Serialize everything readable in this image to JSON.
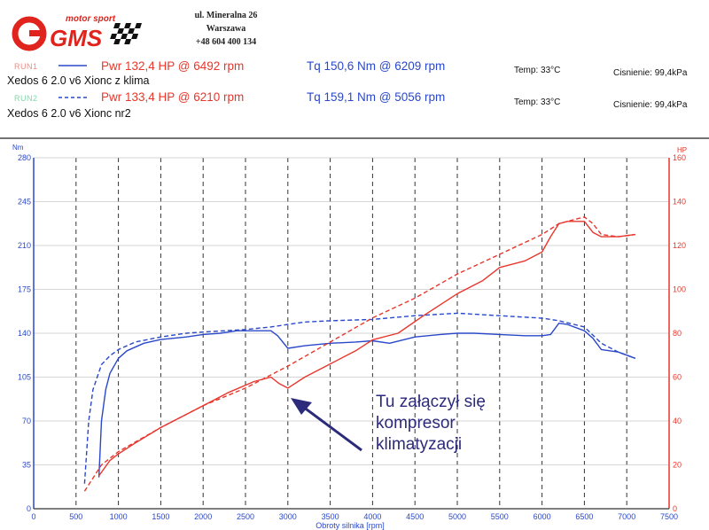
{
  "header": {
    "brand_tagline": "motor sport",
    "brand_letters": "GMS",
    "address_line1": "ul. Mineralna 26",
    "address_line2": "Warszawa",
    "phone": "+48 604 400 134"
  },
  "runs": [
    {
      "tag": "RUN1",
      "tag_color": "#f08a80",
      "line_style": "solid",
      "description": "Xedos 6 2.0  v6 Xionc z  klima",
      "power": "Pwr 132,4 HP @ 6492 rpm",
      "torque": "Tq 150,6 Nm @ 6209 rpm",
      "temp": "Temp: 33°C",
      "pressure": "Cisnienie: 99,4kPa"
    },
    {
      "tag": "RUN2",
      "tag_color": "#7fd9a8",
      "line_style": "dashed",
      "description": "Xedos 6 2.0  v6 Xionc nr2",
      "power": "Pwr 133,4 HP @ 6210 rpm",
      "torque": "Tq 159,1 Nm @ 5056 rpm",
      "temp": "Temp: 33°C",
      "pressure": "Cisnienie: 99,4kPa"
    }
  ],
  "annotation": {
    "line1": "Tu załączył się",
    "line2": "kompresor",
    "line3": "klimatyzacji",
    "color": "#2c2a7a"
  },
  "chart_data": {
    "type": "line",
    "left_axis_unit": "Nm",
    "right_axis_unit": "HP",
    "xlabel": "Obroty silnika [rpm]",
    "xlim": [
      0,
      7500
    ],
    "ylim_left": [
      0,
      280
    ],
    "ylim_right": [
      0,
      160
    ],
    "x_ticks": [
      0,
      500,
      1000,
      1500,
      2000,
      2500,
      3000,
      3500,
      4000,
      4500,
      5000,
      5500,
      6000,
      6500,
      7000,
      7500
    ],
    "left_ticks": [
      0,
      35,
      70,
      105,
      140,
      175,
      210,
      245,
      280
    ],
    "right_ticks": [
      0,
      20,
      40,
      60,
      80,
      100,
      120,
      140,
      160
    ],
    "grid": true,
    "colors": {
      "torque": "#2a48c9",
      "power": "#e8372c"
    },
    "series": [
      {
        "name": "Xedos 6 2.0  v6 Xionc z  klima",
        "axis": "left",
        "quantity": "torque",
        "dash": false,
        "x": [
          770,
          800,
          850,
          900,
          1000,
          1100,
          1300,
          1500,
          1800,
          2000,
          2200,
          2400,
          2600,
          2800,
          2880,
          3000,
          3200,
          3500,
          3800,
          4000,
          4200,
          4500,
          4800,
          5000,
          5200,
          5500,
          5800,
          6000,
          6100,
          6200,
          6300,
          6500,
          6600,
          6700,
          6900,
          7100
        ],
        "y": [
          25,
          70,
          95,
          108,
          120,
          126,
          132,
          135,
          137,
          139,
          140,
          142,
          142,
          142,
          138,
          128,
          130,
          132,
          133,
          134,
          132,
          137,
          139,
          140,
          140,
          139,
          138,
          138,
          139,
          148,
          147,
          142,
          136,
          127,
          125,
          120
        ]
      },
      {
        "name": "Xedos 6 2.0  v6 Xionc nr2",
        "axis": "left",
        "quantity": "torque",
        "dash": true,
        "x": [
          600,
          650,
          700,
          800,
          900,
          1000,
          1200,
          1500,
          1800,
          2000,
          2500,
          2800,
          3000,
          3200,
          3500,
          4000,
          4500,
          5000,
          5500,
          6000,
          6200,
          6500,
          6700,
          6900,
          7100
        ],
        "y": [
          20,
          70,
          95,
          115,
          122,
          127,
          133,
          137,
          140,
          141,
          143,
          145,
          147,
          149,
          150,
          151,
          154,
          156,
          154,
          152,
          150,
          145,
          132,
          125,
          120
        ]
      },
      {
        "name": "Xedos 6 2.0  v6 Xionc z  klima",
        "axis": "right",
        "quantity": "power",
        "dash": false,
        "x": [
          770,
          900,
          1000,
          1200,
          1500,
          1800,
          2000,
          2300,
          2600,
          2800,
          2900,
          3000,
          3200,
          3500,
          3800,
          4000,
          4300,
          4600,
          5000,
          5300,
          5500,
          5800,
          6000,
          6100,
          6200,
          6300,
          6500,
          6600,
          6700,
          6900,
          7100
        ],
        "y": [
          15,
          22,
          25,
          30,
          37,
          43,
          47,
          53,
          58,
          60,
          57,
          55,
          60,
          66,
          72,
          77,
          80,
          88,
          98,
          104,
          110,
          113,
          117,
          124,
          130,
          131,
          131,
          126,
          124,
          124,
          125
        ]
      },
      {
        "name": "Xedos 6 2.0  v6 Xionc nr2",
        "axis": "right",
        "quantity": "power",
        "dash": true,
        "x": [
          600,
          800,
          1000,
          1500,
          2000,
          2500,
          3000,
          3500,
          4000,
          4500,
          5000,
          5500,
          6000,
          6200,
          6500,
          6600,
          6700,
          6900,
          7100
        ],
        "y": [
          8,
          20,
          26,
          37,
          47,
          55,
          65,
          76,
          87,
          96,
          107,
          116,
          125,
          130,
          133,
          130,
          125,
          124,
          125
        ]
      }
    ]
  }
}
